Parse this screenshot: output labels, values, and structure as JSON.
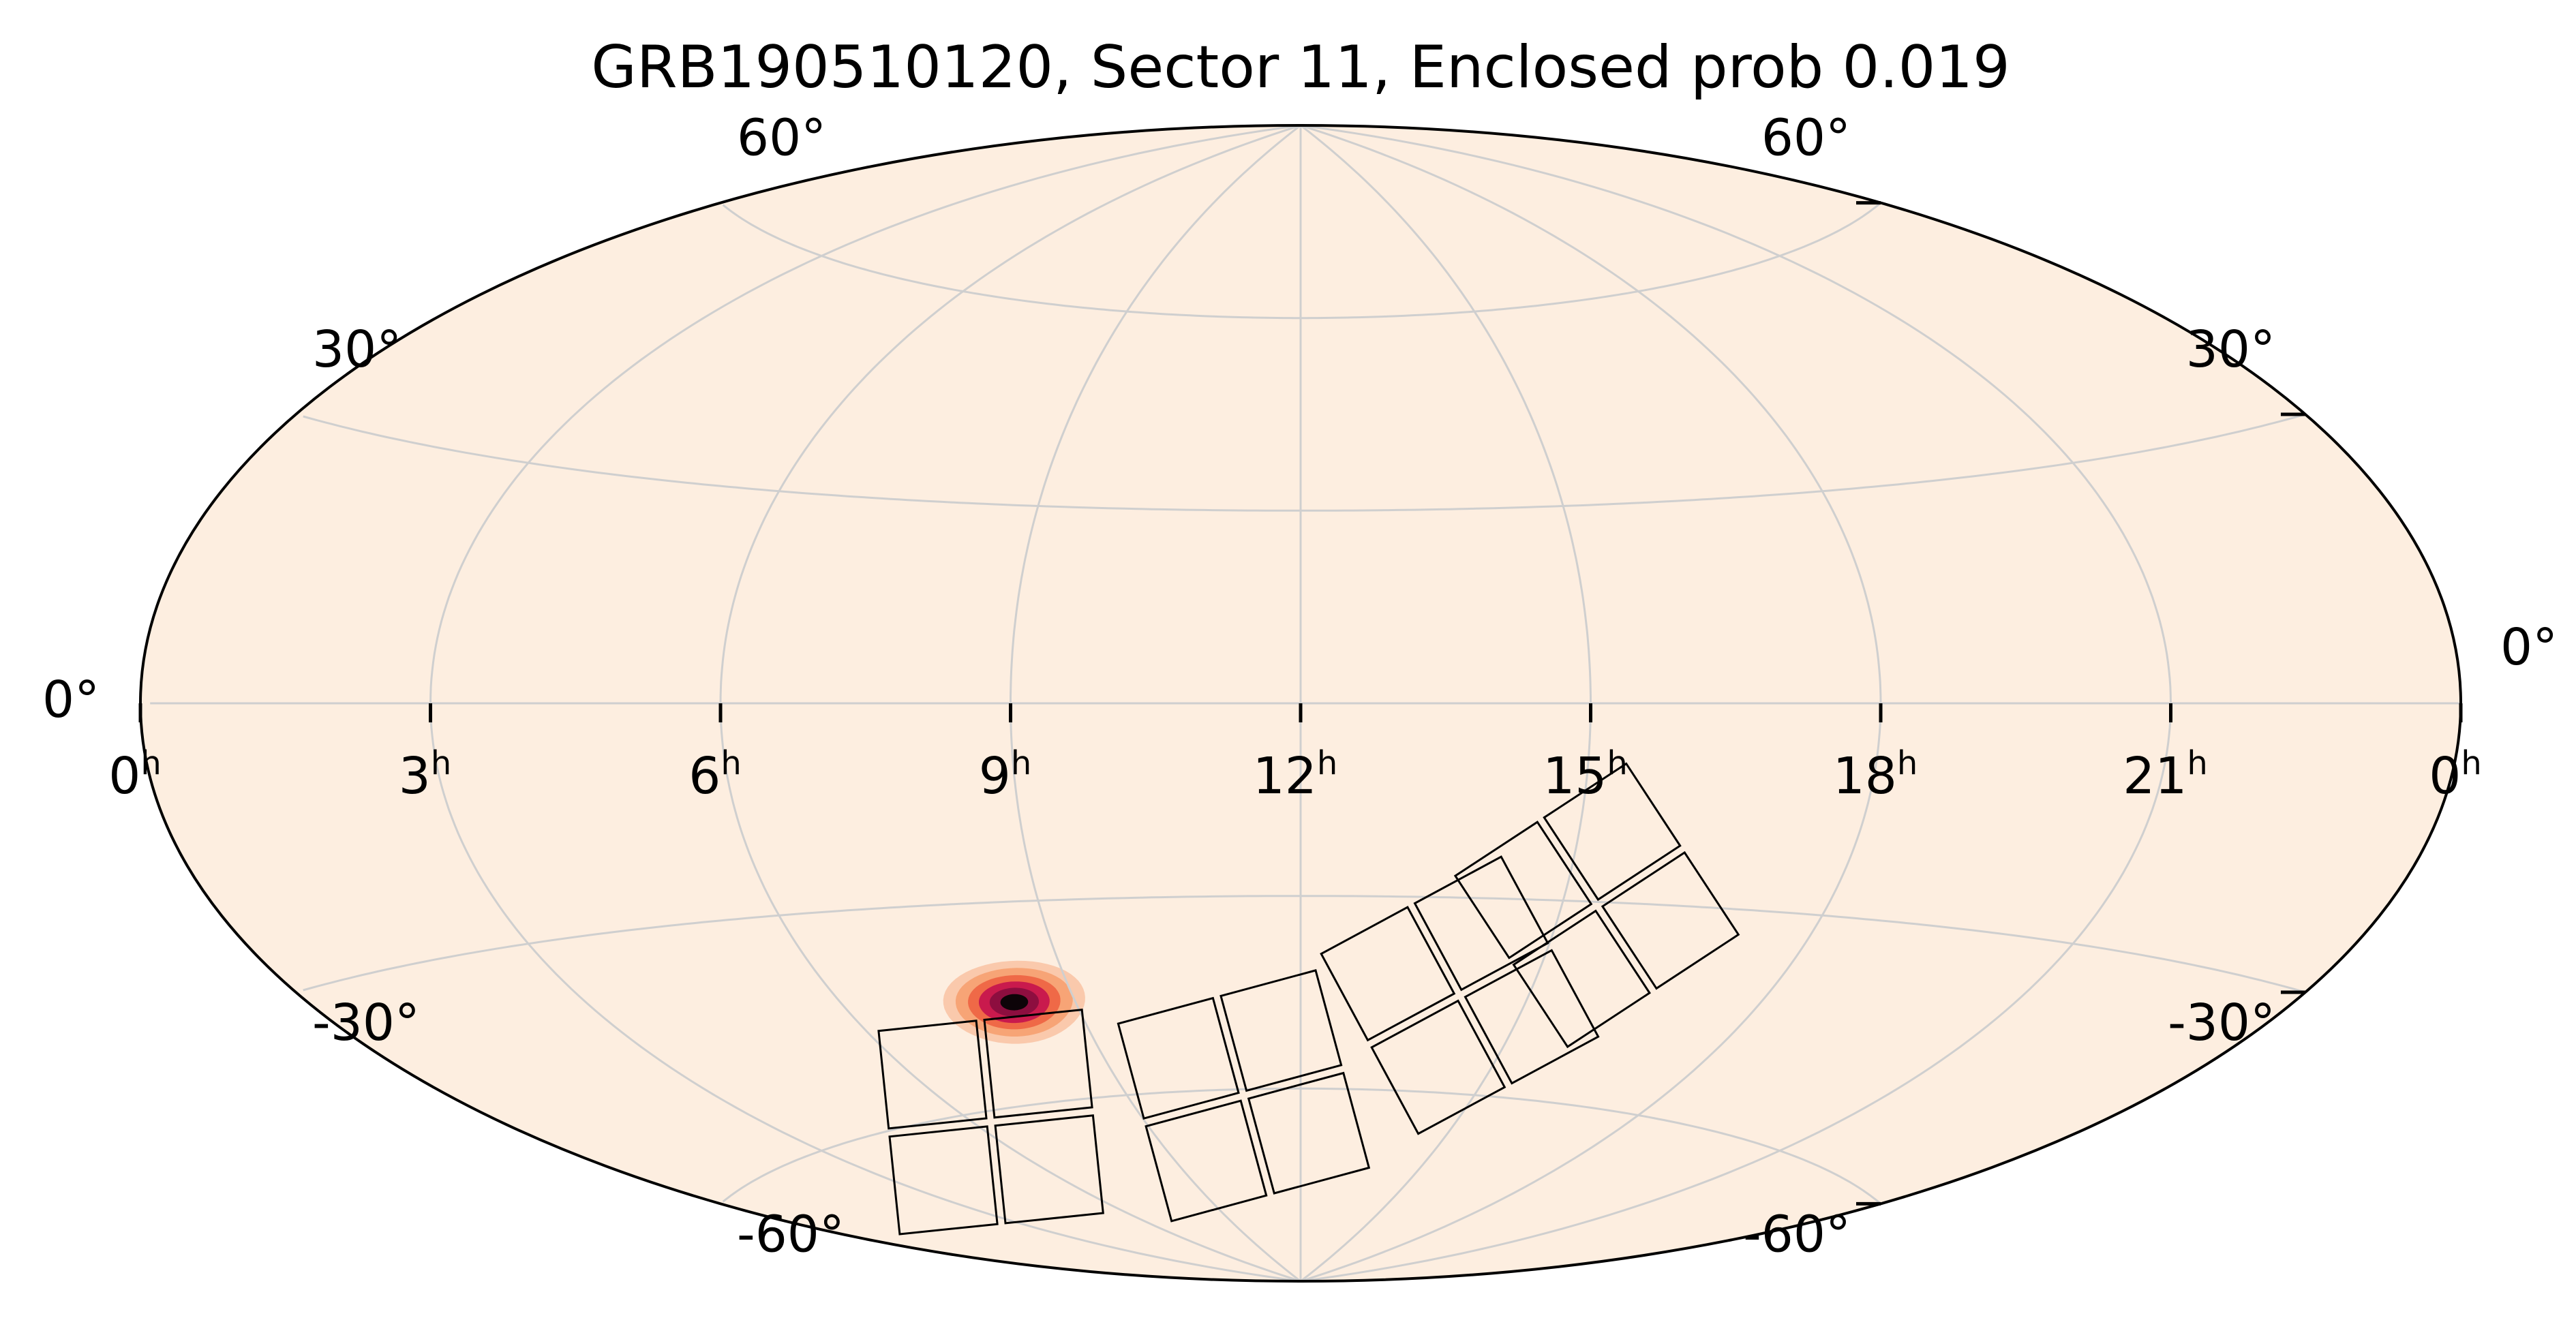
{
  "chart_data": {
    "type": "heatmap",
    "projection": "aitoff",
    "title": "GRB190510120, Sector 11, Enclosed prob 0.019",
    "ra_tick_labels": [
      {
        "hours": 24,
        "text": "0",
        "sup": "h"
      },
      {
        "hours": 21,
        "text": "21",
        "sup": "h"
      },
      {
        "hours": 18,
        "text": "18",
        "sup": "h"
      },
      {
        "hours": 15,
        "text": "15",
        "sup": "h"
      },
      {
        "hours": 12,
        "text": "12",
        "sup": "h"
      },
      {
        "hours": 9,
        "text": "9",
        "sup": "h"
      },
      {
        "hours": 6,
        "text": "6",
        "sup": "h"
      },
      {
        "hours": 3,
        "text": "3",
        "sup": "h"
      },
      {
        "hours": 0,
        "text": "0",
        "sup": "h"
      }
    ],
    "dec_tick_labels": [
      {
        "dec": 60,
        "text": "60°"
      },
      {
        "dec": 30,
        "text": "30°"
      },
      {
        "dec": 0,
        "text": "0°"
      },
      {
        "dec": -30,
        "text": "-30°"
      },
      {
        "dec": -60,
        "text": "-60°"
      }
    ],
    "ra_range_hours": [
      24,
      0
    ],
    "dec_range_deg": [
      -90,
      90
    ],
    "grid": true,
    "colors": {
      "background": "#fdeee0",
      "grid": "#cfcfcf",
      "frame": "#000000",
      "peak": "#0d0408",
      "mid": "#c4124e",
      "outer": "#f4854a"
    },
    "probability_peak": {
      "ra_hours": 8.2,
      "dec_deg": -45,
      "sigma_ra_deg": 4.5,
      "sigma_dec_deg": 2.6
    },
    "tess_sector_footprint": {
      "camera_centers": [
        {
          "ra_hours": 15.4,
          "dec_deg": -30.5
        },
        {
          "ra_hours": 14.1,
          "dec_deg": -45
        },
        {
          "ra_hours": 11.0,
          "dec_deg": -61
        },
        {
          "ra_hours": 6.3,
          "dec_deg": -61.5
        }
      ]
    }
  }
}
